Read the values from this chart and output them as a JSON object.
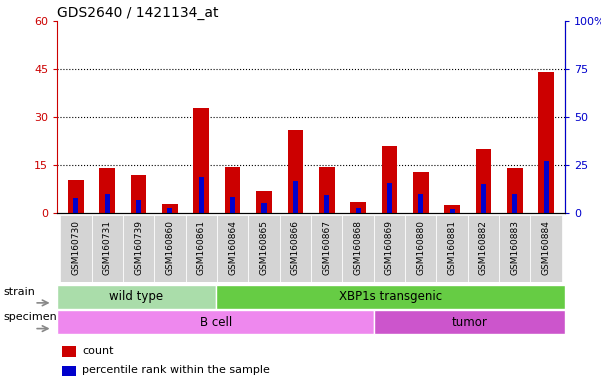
{
  "title": "GDS2640 / 1421134_at",
  "samples": [
    "GSM160730",
    "GSM160731",
    "GSM160739",
    "GSM160860",
    "GSM160861",
    "GSM160864",
    "GSM160865",
    "GSM160866",
    "GSM160867",
    "GSM160868",
    "GSM160869",
    "GSM160880",
    "GSM160881",
    "GSM160882",
    "GSM160883",
    "GSM160884"
  ],
  "count_values": [
    10.5,
    14.0,
    12.0,
    3.0,
    33.0,
    14.5,
    7.0,
    26.0,
    14.5,
    3.5,
    21.0,
    13.0,
    2.5,
    20.0,
    14.0,
    44.0
  ],
  "percentile_values": [
    8.0,
    10.0,
    7.0,
    2.5,
    19.0,
    8.5,
    5.5,
    16.5,
    9.5,
    2.5,
    15.5,
    10.0,
    2.0,
    15.0,
    10.0,
    27.0
  ],
  "ylim_left": [
    0,
    60
  ],
  "ylim_right": [
    0,
    100
  ],
  "yticks_left": [
    0,
    15,
    30,
    45,
    60
  ],
  "yticks_right": [
    0,
    25,
    50,
    75,
    100
  ],
  "ytick_labels_left": [
    "0",
    "15",
    "30",
    "45",
    "60"
  ],
  "ytick_labels_right": [
    "0",
    "25",
    "50",
    "75",
    "100%"
  ],
  "grid_values": [
    15,
    30,
    45
  ],
  "strain_groups": [
    {
      "label": "wild type",
      "start": 0,
      "end": 5,
      "color": "#aaddaa"
    },
    {
      "label": "XBP1s transgenic",
      "start": 5,
      "end": 16,
      "color": "#66cc44"
    }
  ],
  "specimen_groups": [
    {
      "label": "B cell",
      "start": 0,
      "end": 10,
      "color": "#ee88ee"
    },
    {
      "label": "tumor",
      "start": 10,
      "end": 16,
      "color": "#cc55cc"
    }
  ],
  "bar_color_red": "#cc0000",
  "bar_color_blue": "#0000cc",
  "bar_width": 0.5,
  "tick_bg_color": "#d0d0d0",
  "legend_items": [
    {
      "color": "#cc0000",
      "label": "count"
    },
    {
      "color": "#0000cc",
      "label": "percentile rank within the sample"
    }
  ]
}
